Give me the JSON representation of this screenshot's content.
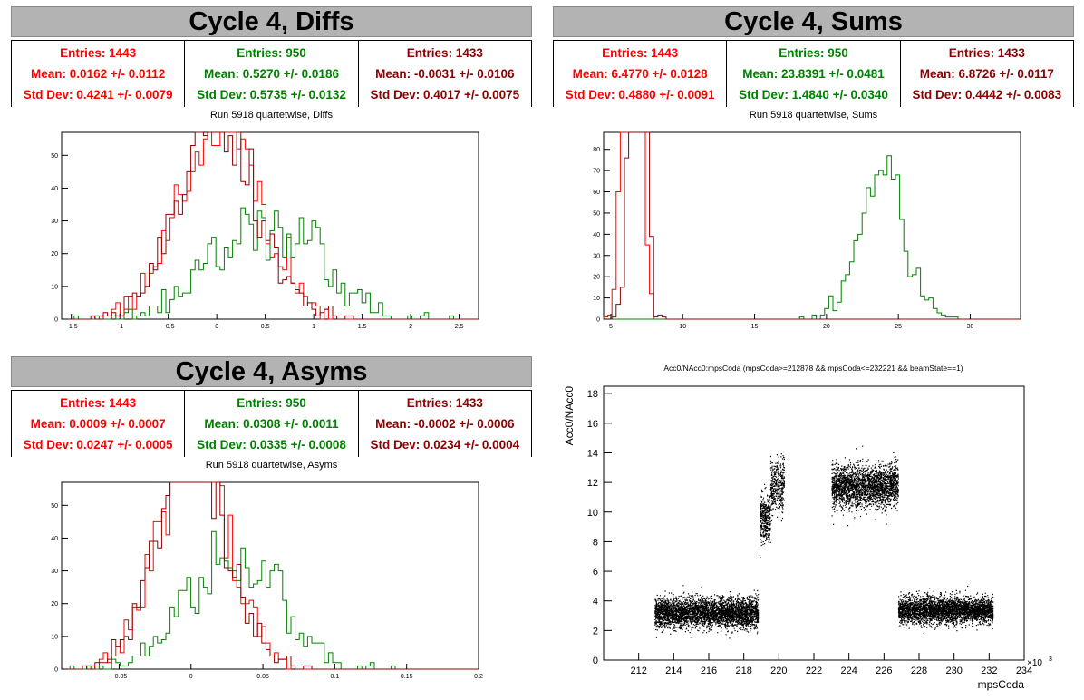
{
  "panels": {
    "diffs": {
      "title": "Cycle 4, Diffs",
      "subtitle": "Run 5918 quartetwise, Diffs",
      "stats": [
        {
          "color": "#ff0000",
          "entries": "Entries: 1443",
          "mean": "Mean: 0.0162 +/- 0.0112",
          "std": "Std Dev: 0.4241 +/- 0.0079"
        },
        {
          "color": "#008000",
          "entries": "Entries: 950",
          "mean": "Mean: 0.5270 +/- 0.0186",
          "std": "Std Dev: 0.5735 +/- 0.0132"
        },
        {
          "color": "#8b0000",
          "entries": "Entries: 1433",
          "mean": "Mean: -0.0031 +/- 0.0106",
          "std": "Std Dev: 0.4017 +/- 0.0075"
        }
      ]
    },
    "sums": {
      "title": "Cycle 4, Sums",
      "subtitle": "Run 5918 quartetwise, Sums",
      "stats": [
        {
          "color": "#ff0000",
          "entries": "Entries: 1443",
          "mean": "Mean: 6.4770 +/- 0.0128",
          "std": "Std Dev: 0.4880 +/- 0.0091"
        },
        {
          "color": "#008000",
          "entries": "Entries: 950",
          "mean": "Mean: 23.8391 +/- 0.0481",
          "std": "Std Dev: 1.4840 +/- 0.0340"
        },
        {
          "color": "#8b0000",
          "entries": "Entries: 1433",
          "mean": "Mean: 6.8726 +/- 0.0117",
          "std": "Std Dev: 0.4442 +/- 0.0083"
        }
      ]
    },
    "asyms": {
      "title": "Cycle 4, Asyms",
      "subtitle": "Run 5918 quartetwise, Asyms",
      "stats": [
        {
          "color": "#ff0000",
          "entries": "Entries: 1443",
          "mean": "Mean: 0.0009 +/- 0.0007",
          "std": "Std Dev: 0.0247 +/- 0.0005"
        },
        {
          "color": "#008000",
          "entries": "Entries: 950",
          "mean": "Mean: 0.0308 +/- 0.0011",
          "std": "Std Dev: 0.0335 +/- 0.0008"
        },
        {
          "color": "#8b0000",
          "entries": "Entries: 1433",
          "mean": "Mean: -0.0002 +/- 0.0006",
          "std": "Std Dev: 0.0234 +/- 0.0004"
        }
      ]
    },
    "scatter": {
      "title": "Acc0/NAcc0:mpsCoda (mpsCoda>=212878 && mpsCoda<=232221 && beamState==1)"
    }
  },
  "chart_data": [
    {
      "type": "bar",
      "name": "diffs",
      "xlim": [
        -1.6,
        2.7
      ],
      "ylim": [
        0,
        57
      ],
      "xticks": [
        -1.5,
        -1,
        -0.5,
        0,
        0.5,
        1,
        1.5,
        2,
        2.5
      ],
      "xtick_labels": [
        "−1.5",
        "−1",
        "−0.5",
        "0",
        "0.5",
        "1",
        "1.5",
        "2",
        "2.5"
      ],
      "yticks": [
        0,
        10,
        20,
        30,
        40,
        50
      ],
      "series": [
        {
          "color": "#ff0000",
          "mean": 0.0162,
          "std": 0.4241,
          "entries": 1443
        },
        {
          "color": "#008000",
          "mean": 0.527,
          "std": 0.5735,
          "entries": 950
        },
        {
          "color": "#8b0000",
          "mean": -0.0031,
          "std": 0.4017,
          "entries": 1433
        }
      ]
    },
    {
      "type": "bar",
      "name": "sums",
      "xlim": [
        4.5,
        33.5
      ],
      "ylim": [
        0,
        88
      ],
      "xticks": [
        5,
        10,
        15,
        20,
        25,
        30
      ],
      "xtick_labels": [
        "5",
        "10",
        "15",
        "20",
        "25",
        "30"
      ],
      "yticks": [
        0,
        10,
        20,
        30,
        40,
        50,
        60,
        70,
        80
      ],
      "series": [
        {
          "color": "#ff0000",
          "mean": 6.477,
          "std": 0.488,
          "entries": 1443
        },
        {
          "color": "#008000",
          "mean": 23.8391,
          "std": 1.484,
          "entries": 950
        },
        {
          "color": "#8b0000",
          "mean": 6.8726,
          "std": 0.4442,
          "entries": 1433
        }
      ]
    },
    {
      "type": "bar",
      "name": "asyms",
      "xlim": [
        -0.09,
        0.2
      ],
      "ylim": [
        0,
        57
      ],
      "xticks": [
        -0.05,
        0,
        0.05,
        0.1,
        0.15,
        0.2
      ],
      "xtick_labels": [
        "−0.05",
        "0",
        "0.05",
        "0.1",
        "0.15",
        "0.2"
      ],
      "yticks": [
        0,
        10,
        20,
        30,
        40,
        50
      ],
      "series": [
        {
          "color": "#ff0000",
          "mean": 0.0009,
          "std": 0.0247,
          "entries": 1443
        },
        {
          "color": "#008000",
          "mean": 0.0308,
          "std": 0.0335,
          "entries": 950
        },
        {
          "color": "#8b0000",
          "mean": -0.0002,
          "std": 0.0234,
          "entries": 1433
        }
      ]
    },
    {
      "type": "scatter",
      "name": "acc0-vs-mpscoda",
      "xlabel": "mpsCoda",
      "ylabel": "Acc0/NAcc0",
      "xexp": "×10",
      "xexp_power": "3",
      "xlim": [
        210,
        234
      ],
      "ylim": [
        0,
        18.5
      ],
      "xticks": [
        212,
        214,
        216,
        218,
        220,
        222,
        224,
        226,
        228,
        230,
        232,
        234
      ],
      "xtick_labels": [
        "212",
        "214",
        "216",
        "218",
        "220",
        "222",
        "224",
        "226",
        "228",
        "230",
        "232",
        "234"
      ],
      "yticks": [
        0,
        2,
        4,
        6,
        8,
        10,
        12,
        14,
        16,
        18
      ],
      "ytick_labels": [
        "0",
        "2",
        "4",
        "6",
        "8",
        "10",
        "12",
        "14",
        "16",
        "18"
      ],
      "clusters": [
        {
          "x": [
            212.9,
            218.8
          ],
          "y_mean": 3.2,
          "y_spread": 0.5,
          "n": 4000
        },
        {
          "x": [
            218.9,
            219.5
          ],
          "y_mean": 9.5,
          "y_spread": 0.8,
          "n": 400
        },
        {
          "x": [
            219.5,
            220.3
          ],
          "y_mean": 11.8,
          "y_spread": 0.9,
          "n": 400
        },
        {
          "x": [
            223.0,
            226.8
          ],
          "y_mean": 11.8,
          "y_spread": 0.7,
          "n": 2500
        },
        {
          "x": [
            226.8,
            232.2
          ],
          "y_mean": 3.4,
          "y_spread": 0.45,
          "n": 3600
        }
      ]
    }
  ]
}
